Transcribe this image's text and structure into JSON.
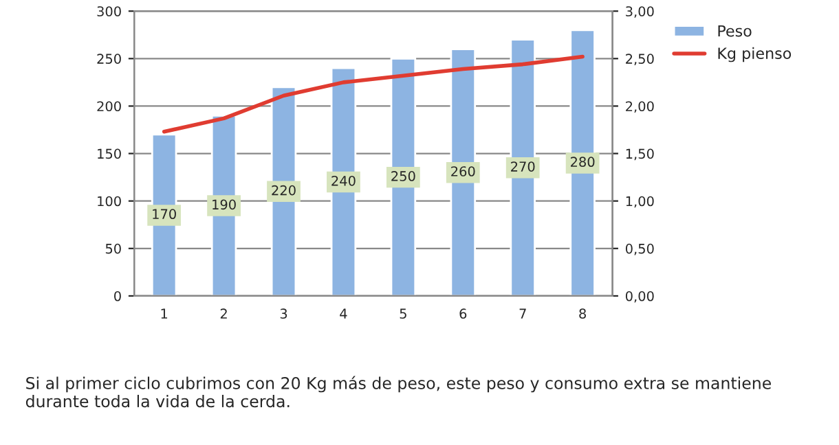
{
  "chart_data": {
    "type": "bar",
    "categories": [
      "1",
      "2",
      "3",
      "4",
      "5",
      "6",
      "7",
      "8"
    ],
    "series": [
      {
        "name": "Peso",
        "color": "#8db4e2",
        "values": [
          170,
          190,
          220,
          240,
          250,
          260,
          270,
          280
        ],
        "value_labels": [
          "170",
          "190",
          "220",
          "240",
          "250",
          "260",
          "270",
          "280"
        ]
      },
      {
        "name": "Kg pienso",
        "type": "line",
        "axis": "y2",
        "color": "#e03c31",
        "values": [
          1.73,
          1.87,
          2.11,
          2.25,
          2.32,
          2.39,
          2.44,
          2.52
        ]
      }
    ],
    "ylim": [
      0,
      300
    ],
    "yticks": [
      0,
      50,
      100,
      150,
      200,
      250,
      300
    ],
    "y2lim": [
      0,
      3
    ],
    "y2ticks": [
      {
        "value": 0,
        "label": "0,00"
      },
      {
        "value": 0.5,
        "label": "0,50"
      },
      {
        "value": 1,
        "label": "1,00"
      },
      {
        "value": 1.5,
        "label": "1,50"
      },
      {
        "value": 2,
        "label": "2,00"
      },
      {
        "value": 2.5,
        "label": "2,50"
      },
      {
        "value": 3,
        "label": "3,00"
      }
    ],
    "grid": "y",
    "legend": "top right",
    "marker": "none",
    "line_style": "solid",
    "annotations": [
      "Si al primer ciclo cubrimos con 20 Kg más de peso, este peso y consumo extra se mantiene durante toda la vida de la cerda."
    ]
  }
}
